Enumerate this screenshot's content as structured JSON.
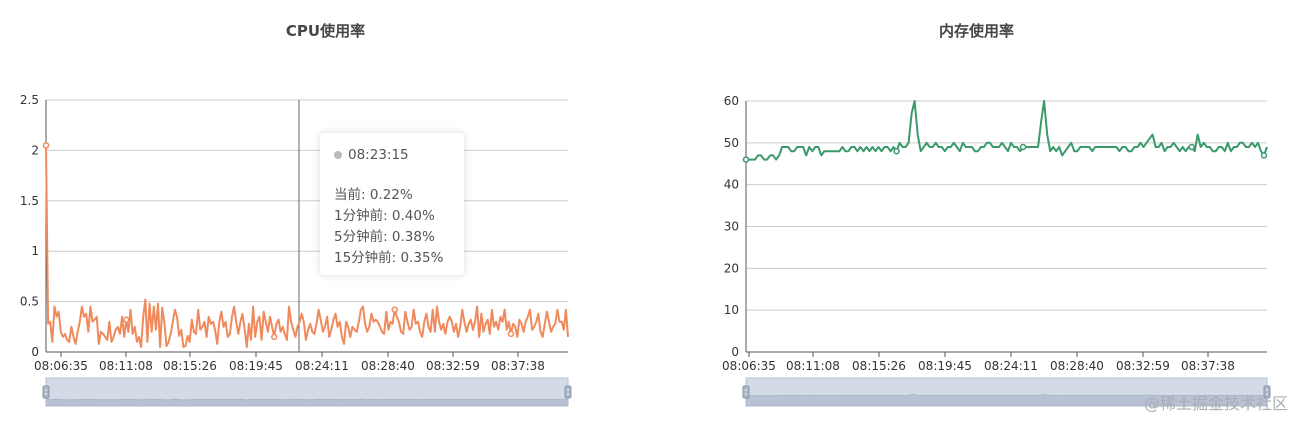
{
  "charts": [
    {
      "id": "cpu",
      "title": "CPU使用率",
      "color": "#f08a5d",
      "tooltip": {
        "time": "08:23:15",
        "lines": [
          "当前: 0.22%",
          "1分钟前:  0.40%",
          "5分钟前:  0.38%",
          "15分钟前:  0.35%"
        ]
      }
    },
    {
      "id": "mem",
      "title": "内存使用率",
      "color": "#3a9a6a"
    }
  ],
  "watermark": "@稀土掘金技术社区",
  "chart_data": [
    {
      "type": "line",
      "title": "CPU使用率",
      "ylim": [
        0,
        2.5
      ],
      "y_ticks": [
        "0",
        "0.5",
        "1",
        "1.5",
        "2",
        "2.5"
      ],
      "x_ticks": [
        "08:06:35",
        "08:11:08",
        "08:15:26",
        "08:19:45",
        "08:24:11",
        "08:28:40",
        "08:32:59",
        "08:37:38"
      ],
      "grid": true,
      "series": [
        {
          "values": [
            2.05,
            0.28,
            0.3,
            0.1,
            0.45,
            0.35,
            0.4,
            0.2,
            0.15,
            0.18,
            0.12,
            0.1,
            0.25,
            0.15,
            0.08,
            0.2,
            0.3,
            0.45,
            0.35,
            0.38,
            0.2,
            0.45,
            0.3,
            0.32,
            0.35,
            0.08,
            0.2,
            0.18,
            0.15,
            0.12,
            0.3,
            0.1,
            0.15,
            0.22,
            0.25,
            0.18,
            0.35,
            0.15,
            0.32,
            0.2,
            0.42,
            0.18,
            0.25,
            0.1,
            0.15,
            0.05,
            0.35,
            0.52,
            0.1,
            0.48,
            0.2,
            0.45,
            0.22,
            0.48,
            0.05,
            0.44,
            0.3,
            0.06,
            0.1,
            0.18,
            0.3,
            0.42,
            0.35,
            0.16,
            0.22,
            0.05,
            0.06,
            0.16,
            0.1,
            0.32,
            0.2,
            0.18,
            0.42,
            0.22,
            0.25,
            0.3,
            0.15,
            0.35,
            0.28,
            0.3,
            0.22,
            0.08,
            0.3,
            0.4,
            0.25,
            0.3,
            0.15,
            0.18,
            0.35,
            0.45,
            0.3,
            0.18,
            0.3,
            0.38,
            0.22,
            0.05,
            0.28,
            0.12,
            0.45,
            0.15,
            0.3,
            0.35,
            0.12,
            0.4,
            0.3,
            0.2,
            0.35,
            0.25,
            0.15,
            0.28,
            0.32,
            0.2,
            0.25,
            0.18,
            0.12,
            0.45,
            0.3,
            0.22,
            0.15,
            0.25,
            0.3,
            0.38,
            0.3,
            0.12,
            0.22,
            0.28,
            0.2,
            0.18,
            0.28,
            0.42,
            0.32,
            0.2,
            0.25,
            0.35,
            0.15,
            0.22,
            0.32,
            0.38,
            0.25,
            0.3,
            0.15,
            0.08,
            0.3,
            0.25,
            0.15,
            0.25,
            0.22,
            0.2,
            0.3,
            0.42,
            0.45,
            0.28,
            0.2,
            0.25,
            0.38,
            0.3,
            0.32,
            0.3,
            0.25,
            0.2,
            0.18,
            0.4,
            0.22,
            0.3,
            0.28,
            0.42,
            0.35,
            0.3,
            0.2,
            0.18,
            0.4,
            0.3,
            0.22,
            0.25,
            0.42,
            0.28,
            0.3,
            0.2,
            0.15,
            0.3,
            0.38,
            0.25,
            0.2,
            0.42,
            0.2,
            0.45,
            0.3,
            0.22,
            0.28,
            0.18,
            0.3,
            0.35,
            0.3,
            0.2,
            0.28,
            0.15,
            0.25,
            0.42,
            0.3,
            0.2,
            0.28,
            0.32,
            0.22,
            0.3,
            0.45,
            0.15,
            0.38,
            0.2,
            0.28,
            0.32,
            0.18,
            0.42,
            0.25,
            0.3,
            0.22,
            0.35,
            0.3,
            0.42,
            0.22,
            0.3,
            0.18,
            0.28,
            0.25,
            0.15,
            0.32,
            0.28,
            0.2,
            0.3,
            0.35,
            0.42,
            0.22,
            0.25,
            0.3,
            0.38,
            0.2,
            0.15,
            0.28,
            0.4,
            0.3,
            0.2,
            0.25,
            0.28,
            0.42,
            0.3,
            0.3,
            0.22,
            0.42,
            0.15
          ]
        }
      ]
    },
    {
      "type": "line",
      "title": "内存使用率",
      "ylim": [
        0,
        60
      ],
      "y_ticks": [
        "0",
        "10",
        "20",
        "30",
        "40",
        "50",
        "60"
      ],
      "x_ticks": [
        "08:06:35",
        "08:11:08",
        "08:15:26",
        "08:19:45",
        "08:24:11",
        "08:28:40",
        "08:32:59",
        "08:37:38"
      ],
      "grid": true,
      "series": [
        {
          "values": [
            46,
            46,
            46,
            46,
            47,
            47,
            46,
            46,
            47,
            47,
            46,
            47,
            49,
            49,
            49,
            48,
            48,
            49,
            49,
            49,
            47,
            49,
            48,
            49,
            49,
            47,
            48,
            48,
            48,
            48,
            48,
            48,
            49,
            48,
            48,
            49,
            49,
            48,
            49,
            48,
            49,
            48,
            49,
            48,
            49,
            48,
            49,
            49,
            48,
            49,
            48,
            50,
            49,
            49,
            50,
            57,
            60,
            52,
            48,
            49,
            50,
            49,
            49,
            50,
            49,
            49,
            48,
            49,
            49,
            50,
            49,
            48,
            50,
            49,
            49,
            49,
            48,
            48,
            49,
            49,
            50,
            50,
            49,
            49,
            49,
            50,
            49,
            48,
            50,
            49,
            49,
            48,
            49,
            49,
            49,
            49,
            49,
            49,
            55,
            60,
            52,
            48,
            49,
            48,
            49,
            47,
            48,
            49,
            50,
            48,
            48,
            49,
            49,
            49,
            49,
            48,
            49,
            49,
            49,
            49,
            49,
            49,
            49,
            49,
            48,
            49,
            49,
            48,
            48,
            49,
            49,
            50,
            49,
            50,
            51,
            52,
            49,
            49,
            50,
            48,
            49,
            49,
            50,
            49,
            48,
            49,
            48,
            49,
            49,
            48,
            52,
            49,
            50,
            49,
            49,
            48,
            48,
            49,
            49,
            48,
            50,
            48,
            49,
            49,
            50,
            50,
            49,
            49,
            50,
            49,
            50,
            48,
            47,
            49
          ]
        }
      ]
    }
  ]
}
